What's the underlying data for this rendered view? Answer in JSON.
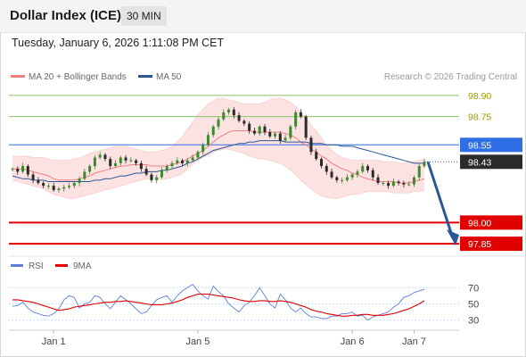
{
  "header": {
    "title": "Dollar Index (ICE)",
    "timeframe": "30 MIN"
  },
  "datetime": "Tuesday, January 6, 2026 1:11:08 PM CET",
  "legend": {
    "ma20": {
      "label": "MA 20 + Bollinger Bands",
      "color": "#f08080"
    },
    "ma50": {
      "label": "MA 50",
      "color": "#2b5797"
    }
  },
  "copyright": "Research © 2026 Trading Central",
  "chart_data": {
    "type": "candlestick",
    "price_panel": {
      "ylim": [
        97.8,
        98.95
      ],
      "levels": [
        {
          "value": 98.9,
          "label": "98.90",
          "kind": "target",
          "color": "#8ac26a"
        },
        {
          "value": 98.75,
          "label": "98.75",
          "kind": "target",
          "color": "#8ac26a"
        },
        {
          "value": 98.55,
          "label": "98.55",
          "kind": "pivot",
          "color": "#2f6fe6"
        },
        {
          "value": 98.0,
          "label": "98.00",
          "kind": "support",
          "color": "#e00000"
        },
        {
          "value": 97.85,
          "label": "97.85",
          "kind": "support",
          "color": "#e00000"
        }
      ],
      "last_price": {
        "value": 98.43,
        "label": "98.43"
      },
      "forecast_arrow": {
        "from": 98.43,
        "to": 97.85,
        "color": "#2b5797"
      },
      "close": [
        98.38,
        98.36,
        98.4,
        98.34,
        98.3,
        98.28,
        98.26,
        98.26,
        98.23,
        98.24,
        98.25,
        98.26,
        98.28,
        98.31,
        98.36,
        98.4,
        98.46,
        98.48,
        98.45,
        98.4,
        98.42,
        98.46,
        98.44,
        98.44,
        98.42,
        98.38,
        98.34,
        98.3,
        98.32,
        98.37,
        98.4,
        98.42,
        98.44,
        98.42,
        98.44,
        98.46,
        98.5,
        98.55,
        98.62,
        98.68,
        98.73,
        98.78,
        98.8,
        98.76,
        98.72,
        98.7,
        98.65,
        98.63,
        98.68,
        98.64,
        98.61,
        98.63,
        98.58,
        98.6,
        98.68,
        98.78,
        98.75,
        98.6,
        98.5,
        98.45,
        98.4,
        98.36,
        98.32,
        98.3,
        98.3,
        98.32,
        98.34,
        98.36,
        98.4,
        98.37,
        98.32,
        98.28,
        98.28,
        98.26,
        98.29,
        98.28,
        98.27,
        98.27,
        98.32,
        98.4,
        98.43
      ],
      "ma20": [
        98.38,
        98.38,
        98.38,
        98.37,
        98.36,
        98.35,
        98.34,
        98.33,
        98.31,
        98.3,
        98.3,
        98.3,
        98.3,
        98.31,
        98.32,
        98.33,
        98.35,
        98.36,
        98.37,
        98.38,
        98.39,
        98.4,
        98.4,
        98.41,
        98.41,
        98.41,
        98.41,
        98.4,
        98.4,
        98.4,
        98.4,
        98.41,
        98.42,
        98.43,
        98.45,
        98.47,
        98.49,
        98.51,
        98.54,
        98.57,
        98.6,
        98.62,
        98.64,
        98.65,
        98.65,
        98.65,
        98.65,
        98.64,
        98.64,
        98.64,
        98.64,
        98.64,
        98.64,
        98.63,
        98.62,
        98.6,
        98.57,
        98.55,
        98.52,
        98.5,
        98.47,
        98.45,
        98.42,
        98.4,
        98.38,
        98.37,
        98.35,
        98.34,
        98.32,
        98.31,
        98.3,
        98.29,
        98.29,
        98.29,
        98.29,
        98.28,
        98.28,
        98.28,
        98.29,
        98.3,
        98.31
      ],
      "bb_upper": [
        98.47,
        98.47,
        98.47,
        98.47,
        98.46,
        98.46,
        98.46,
        98.45,
        98.44,
        98.44,
        98.44,
        98.44,
        98.45,
        98.46,
        98.47,
        98.49,
        98.5,
        98.51,
        98.52,
        98.53,
        98.54,
        98.54,
        98.54,
        98.53,
        98.52,
        98.51,
        98.5,
        98.5,
        98.5,
        98.51,
        98.52,
        98.54,
        98.57,
        98.61,
        98.66,
        98.71,
        98.76,
        98.8,
        98.84,
        98.86,
        98.88,
        98.88,
        98.87,
        98.86,
        98.85,
        98.84,
        98.84,
        98.84,
        98.84,
        98.85,
        98.87,
        98.88,
        98.88,
        98.87,
        98.85,
        98.82,
        98.78,
        98.74,
        98.69,
        98.65,
        98.6,
        98.55,
        98.51,
        98.48,
        98.46,
        98.45,
        98.44,
        98.44,
        98.44,
        98.44,
        98.44,
        98.44,
        98.43,
        98.43,
        98.43,
        98.42,
        98.42,
        98.43,
        98.43,
        98.44,
        98.45
      ],
      "bb_lower": [
        98.3,
        98.29,
        98.28,
        98.27,
        98.26,
        98.25,
        98.24,
        98.22,
        98.2,
        98.19,
        98.18,
        98.17,
        98.17,
        98.18,
        98.19,
        98.2,
        98.21,
        98.22,
        98.23,
        98.24,
        98.25,
        98.26,
        98.27,
        98.28,
        98.29,
        98.3,
        98.31,
        98.31,
        98.31,
        98.31,
        98.31,
        98.32,
        98.33,
        98.35,
        98.38,
        98.41,
        98.44,
        98.46,
        98.48,
        98.5,
        98.51,
        98.52,
        98.52,
        98.51,
        98.5,
        98.49,
        98.47,
        98.46,
        98.45,
        98.45,
        98.44,
        98.43,
        98.42,
        98.4,
        98.37,
        98.34,
        98.3,
        98.27,
        98.24,
        98.21,
        98.19,
        98.18,
        98.17,
        98.17,
        98.18,
        98.19,
        98.2,
        98.2,
        98.21,
        98.22,
        98.22,
        98.22,
        98.22,
        98.22,
        98.21,
        98.21,
        98.21,
        98.21,
        98.22,
        98.22,
        98.23
      ],
      "ma50": [
        98.33,
        98.32,
        98.31,
        98.31,
        98.3,
        98.3,
        98.3,
        98.29,
        98.29,
        98.29,
        98.29,
        98.29,
        98.29,
        98.29,
        98.29,
        98.29,
        98.3,
        98.3,
        98.31,
        98.31,
        98.32,
        98.33,
        98.33,
        98.34,
        98.35,
        98.35,
        98.36,
        98.36,
        98.36,
        98.37,
        98.37,
        98.38,
        98.39,
        98.4,
        98.42,
        98.43,
        98.45,
        98.47,
        98.49,
        98.51,
        98.52,
        98.53,
        98.54,
        98.55,
        98.56,
        98.56,
        98.57,
        98.57,
        98.58,
        98.58,
        98.58,
        98.58,
        98.58,
        98.57,
        98.57,
        98.57,
        98.57,
        98.57,
        98.56,
        98.56,
        98.56,
        98.55,
        98.55,
        98.55,
        98.54,
        98.54,
        98.54,
        98.53,
        98.52,
        98.51,
        98.5,
        98.49,
        98.48,
        98.47,
        98.46,
        98.45,
        98.44,
        98.43,
        98.42,
        98.42,
        98.42
      ]
    },
    "rsi_panel": {
      "legend": {
        "rsi": "RSI",
        "ma": "9MA"
      },
      "ylim": [
        22,
        78
      ],
      "ticks": [
        "70",
        "50",
        "30"
      ],
      "rsi": [
        47,
        48,
        52,
        45,
        40,
        38,
        36,
        35,
        38,
        44,
        55,
        60,
        58,
        45,
        50,
        52,
        60,
        58,
        50,
        44,
        52,
        60,
        55,
        50,
        44,
        38,
        40,
        48,
        55,
        58,
        60,
        52,
        60,
        66,
        70,
        74,
        66,
        60,
        56,
        72,
        65,
        60,
        50,
        45,
        40,
        48,
        52,
        60,
        70,
        60,
        50,
        45,
        62,
        55,
        45,
        40,
        45,
        38,
        34,
        34,
        32,
        32,
        35,
        35,
        38,
        38,
        40,
        35,
        36,
        30,
        34,
        36,
        38,
        40,
        46,
        50,
        58,
        60,
        64,
        66,
        68
      ],
      "ma9": [
        55,
        55,
        54,
        53,
        52,
        50,
        48,
        46,
        44,
        42,
        43,
        44,
        46,
        47,
        48,
        49,
        50,
        51,
        52,
        52,
        53,
        53,
        54,
        53,
        52,
        51,
        50,
        49,
        49,
        49,
        50,
        51,
        53,
        55,
        58,
        60,
        62,
        62,
        62,
        61,
        60,
        59,
        58,
        57,
        55,
        54,
        53,
        53,
        54,
        54,
        53,
        53,
        54,
        53,
        52,
        50,
        48,
        46,
        43,
        41,
        40,
        38,
        37,
        36,
        35,
        35,
        36,
        36,
        37,
        37,
        36,
        36,
        36,
        37,
        38,
        40,
        42,
        44,
        47,
        50,
        54
      ],
      "ref_levels": [
        70,
        50,
        30
      ]
    },
    "x_axis": {
      "tick_labels": [
        "Jan 1",
        "Jan 5",
        "Jan 6",
        "Jan 7"
      ]
    }
  }
}
